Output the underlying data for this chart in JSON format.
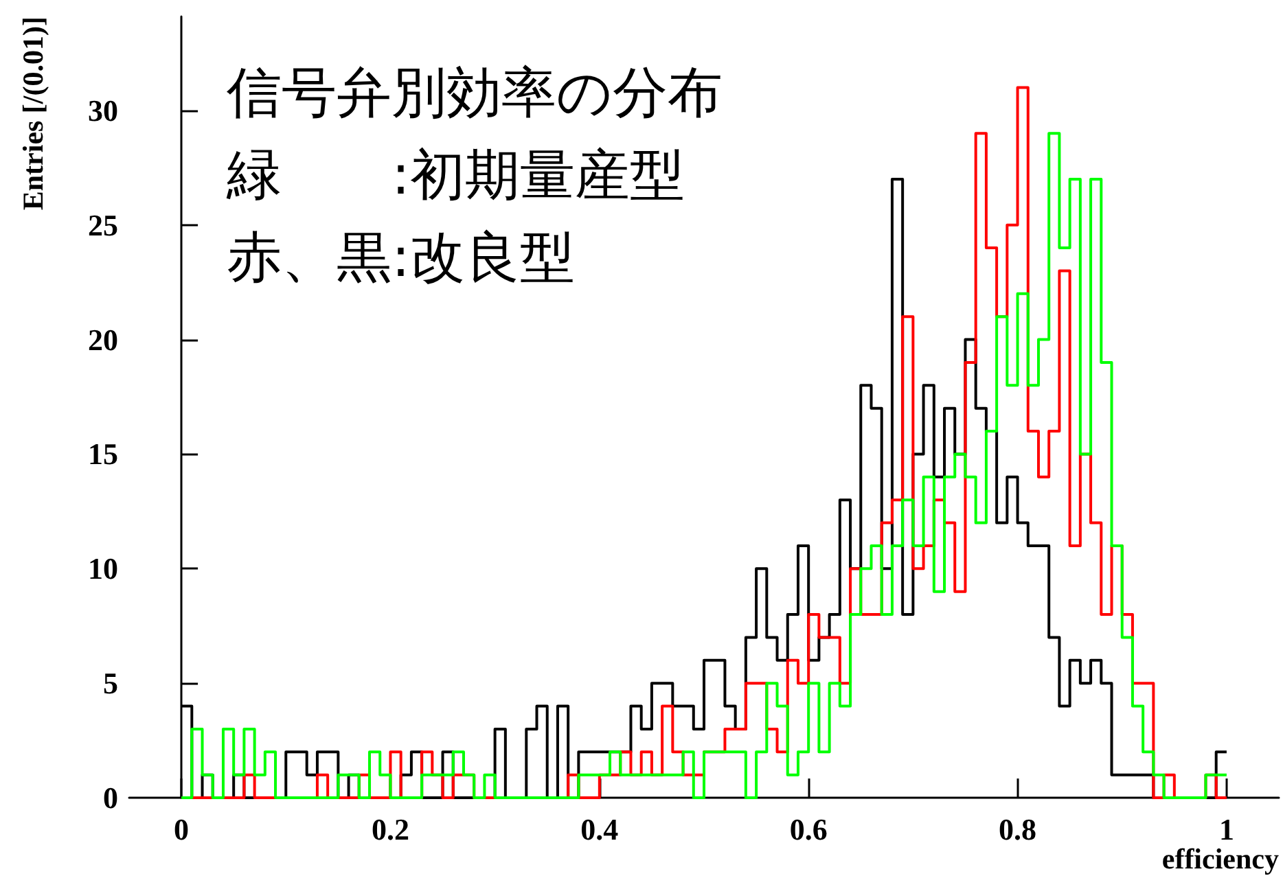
{
  "chart_data": {
    "type": "histogram",
    "xlabel": "efficiency",
    "ylabel": "Entries [/(0.01)]",
    "annotations": [
      "信号弁別効率の分布",
      "緑　　:初期量産型",
      "赤、黒:改良型"
    ],
    "bins": [
      0,
      0.01,
      0.02,
      0.03,
      0.04,
      0.05,
      0.06,
      0.07,
      0.08,
      0.09,
      0.1,
      0.11,
      0.12,
      0.13,
      0.14,
      0.15,
      0.16,
      0.17,
      0.18,
      0.19,
      0.2,
      0.21,
      0.22,
      0.23,
      0.24,
      0.25,
      0.26,
      0.27,
      0.28,
      0.29,
      0.3,
      0.31,
      0.32,
      0.33,
      0.34,
      0.35,
      0.36,
      0.37,
      0.38,
      0.39,
      0.4,
      0.41,
      0.42,
      0.43,
      0.44,
      0.45,
      0.46,
      0.47,
      0.48,
      0.49,
      0.5,
      0.51,
      0.52,
      0.53,
      0.54,
      0.55,
      0.56,
      0.57,
      0.58,
      0.59,
      0.6,
      0.61,
      0.62,
      0.63,
      0.64,
      0.65,
      0.66,
      0.67,
      0.68,
      0.69,
      0.7,
      0.71,
      0.72,
      0.73,
      0.74,
      0.75,
      0.76,
      0.77,
      0.78,
      0.79,
      0.8,
      0.81,
      0.82,
      0.83,
      0.84,
      0.85,
      0.86,
      0.87,
      0.88,
      0.89,
      0.9,
      0.91,
      0.92,
      0.93,
      0.94,
      0.95,
      0.96,
      0.97,
      0.98,
      0.99,
      1
    ],
    "series": [
      {
        "color": "#000000",
        "values": [
          4,
          0,
          1,
          0,
          0,
          1,
          0,
          0,
          0,
          0,
          2,
          2,
          1,
          2,
          2,
          0,
          1,
          0,
          0,
          0,
          0,
          1,
          2,
          0,
          0,
          2,
          0,
          0,
          0,
          0,
          3,
          0,
          0,
          3,
          4,
          0,
          4,
          0,
          2,
          2,
          2,
          2,
          2,
          4,
          3,
          5,
          5,
          4,
          4,
          3,
          6,
          6,
          4,
          3,
          7,
          10,
          7,
          6,
          8,
          11,
          6,
          7,
          8,
          13,
          10,
          18,
          17,
          10,
          27,
          8,
          15,
          18,
          14,
          17,
          15,
          20,
          17,
          16,
          12,
          14,
          12,
          11,
          11,
          7,
          4,
          6,
          5,
          6,
          5,
          1,
          1,
          1,
          1,
          0,
          0,
          0,
          0,
          0,
          0,
          2
        ]
      },
      {
        "color": "#ff0000",
        "values": [
          0,
          0,
          0,
          0,
          0,
          0,
          1,
          0,
          0,
          0,
          0,
          0,
          0,
          1,
          0,
          0,
          0,
          1,
          0,
          0,
          2,
          0,
          0,
          2,
          1,
          0,
          1,
          1,
          0,
          0,
          0,
          0,
          0,
          0,
          0,
          0,
          0,
          1,
          0,
          0,
          1,
          1,
          2,
          1,
          2,
          1,
          4,
          2,
          1,
          1,
          2,
          2,
          3,
          3,
          5,
          5,
          3,
          2,
          6,
          5,
          8,
          7,
          7,
          5,
          10,
          8,
          8,
          12,
          13,
          21,
          10,
          11,
          13,
          12,
          9,
          19,
          29,
          24,
          21,
          25,
          31,
          16,
          14,
          16,
          23,
          11,
          15,
          12,
          8,
          11,
          8,
          5,
          5,
          0,
          1,
          0,
          0,
          0,
          1,
          0
        ]
      },
      {
        "color": "#00ff00",
        "values": [
          0,
          3,
          1,
          0,
          3,
          1,
          3,
          1,
          2,
          0,
          0,
          0,
          0,
          0,
          0,
          1,
          1,
          0,
          2,
          1,
          0,
          0,
          0,
          1,
          1,
          1,
          2,
          1,
          0,
          1,
          0,
          0,
          0,
          0,
          0,
          0,
          0,
          0,
          1,
          1,
          1,
          2,
          1,
          1,
          1,
          1,
          1,
          1,
          2,
          0,
          2,
          2,
          2,
          2,
          0,
          2,
          5,
          4,
          1,
          2,
          5,
          2,
          5,
          4,
          8,
          10,
          11,
          8,
          11,
          13,
          11,
          14,
          9,
          14,
          15,
          14,
          12,
          16,
          21,
          18,
          22,
          18,
          20,
          29,
          24,
          27,
          15,
          27,
          19,
          11,
          7,
          4,
          2,
          1,
          0,
          0,
          0,
          0,
          1,
          1
        ]
      }
    ],
    "xlim": [
      -0.05,
      1.05
    ],
    "xticks": [
      0,
      0.2,
      0.4,
      0.6,
      0.8,
      1
    ],
    "ylim": [
      0,
      34.1
    ],
    "yticks": [
      0,
      5,
      10,
      15,
      20,
      25,
      30
    ],
    "grid": false
  }
}
